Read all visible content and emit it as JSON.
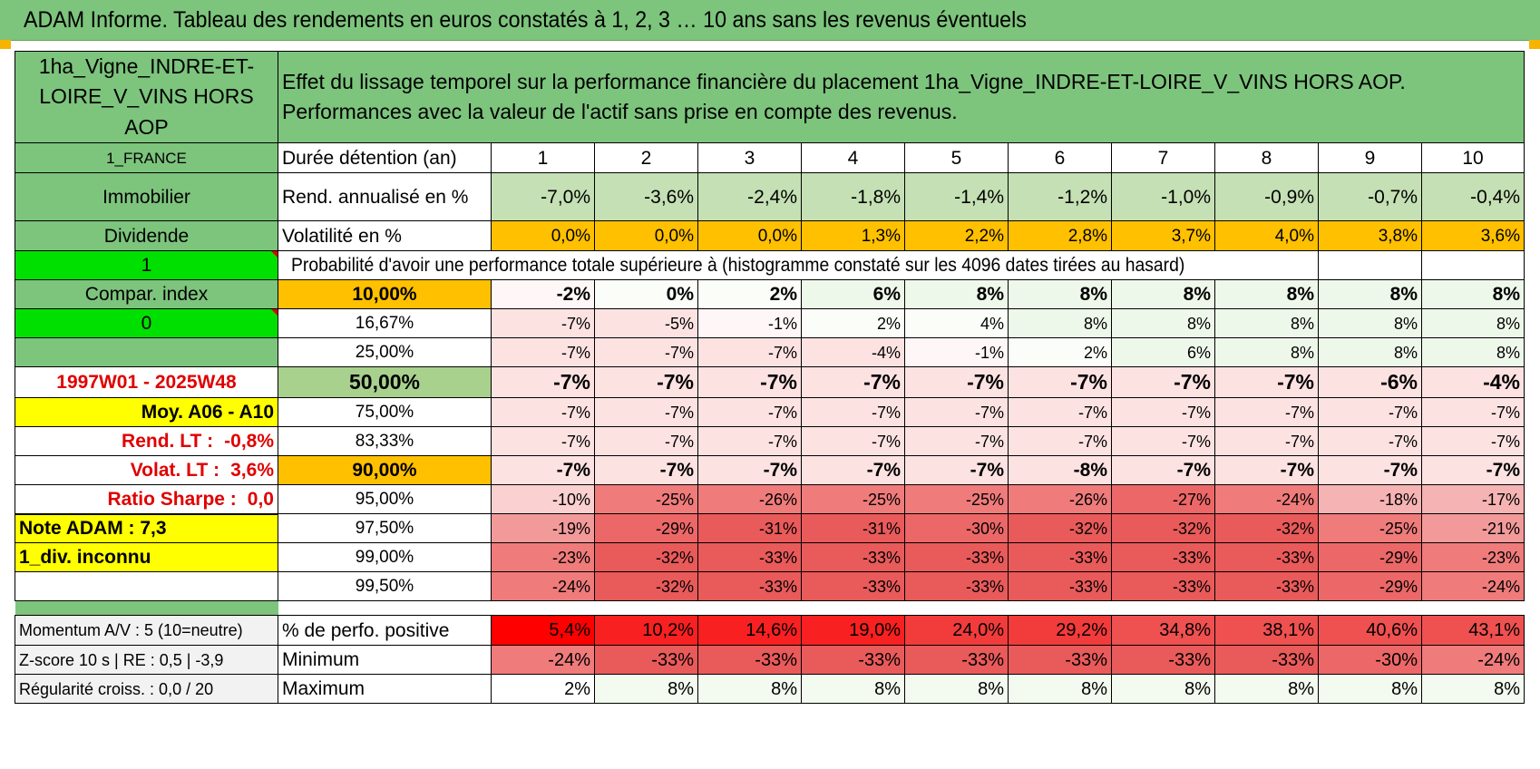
{
  "title": "ADAM Informe. Tableau des rendements en euros constatés à 1, 2, 3 … 10 ans sans les revenus éventuels",
  "header": {
    "asset_name": "1ha_Vigne_INDRE-ET-LOIRE_V_VINS HORS AOP",
    "description_line1": "Effet du lissage temporel sur la performance financière du placement 1ha_Vigne_INDRE-ET-LOIRE_V_VINS HORS AOP.",
    "description_line2": "Performances avec la valeur de l'actif sans prise en compte des revenus."
  },
  "side": {
    "country": "1_FRANCE",
    "category": "Immobilier",
    "income_type": "Dividende",
    "flag1": "1",
    "compar_label": "Compar. index",
    "flag2": "0",
    "blank": "",
    "period": "1997W01 - 2025W48",
    "avg_range": "Moy. A06 - A10",
    "rend_lt_label": "Rend. LT :",
    "rend_lt_value": "-0,8%",
    "volat_lt_label": "Volat. LT :",
    "volat_lt_value": "3,6%",
    "sharpe_label": "Ratio Sharpe :",
    "sharpe_value": "0,0",
    "note_adam": "Note ADAM : 7,3",
    "div_info": "1_div. inconnu",
    "momentum": "Momentum A/V : 5 (10=neutre)",
    "zscore": "Z-score 10 s | RE : 0,5 | -3,9",
    "regularite": "Régularité croiss. : 0,0 / 20"
  },
  "labels": {
    "duration": "Durée détention (an)",
    "rend": "Rend. annualisé en %",
    "vol": "Volatilité en %",
    "prob_header": "Probabilité d'avoir une performance totale supérieure à (histogramme constaté sur les 4096 dates tirées au hasard)",
    "pct_positive": "% de perfo. positive",
    "minimum": "Minimum",
    "maximum": "Maximum"
  },
  "years": [
    "1",
    "2",
    "3",
    "4",
    "5",
    "6",
    "7",
    "8",
    "9",
    "10"
  ],
  "rend_annualise": [
    "-7,0%",
    "-3,6%",
    "-2,4%",
    "-1,8%",
    "-1,4%",
    "-1,2%",
    "-1,0%",
    "-0,9%",
    "-0,7%",
    "-0,4%"
  ],
  "volatilite": [
    "0,0%",
    "0,0%",
    "0,0%",
    "1,3%",
    "2,2%",
    "2,8%",
    "3,7%",
    "4,0%",
    "3,8%",
    "3,6%"
  ],
  "probabilities": [
    {
      "p": "10,00%",
      "values": [
        "-2%",
        "0%",
        "2%",
        "6%",
        "8%",
        "8%",
        "8%",
        "8%",
        "8%",
        "8%"
      ]
    },
    {
      "p": "16,67%",
      "values": [
        "-7%",
        "-5%",
        "-1%",
        "2%",
        "4%",
        "8%",
        "8%",
        "8%",
        "8%",
        "8%"
      ]
    },
    {
      "p": "25,00%",
      "values": [
        "-7%",
        "-7%",
        "-7%",
        "-4%",
        "-1%",
        "2%",
        "6%",
        "8%",
        "8%",
        "8%"
      ]
    },
    {
      "p": "50,00%",
      "values": [
        "-7%",
        "-7%",
        "-7%",
        "-7%",
        "-7%",
        "-7%",
        "-7%",
        "-7%",
        "-6%",
        "-4%"
      ]
    },
    {
      "p": "75,00%",
      "values": [
        "-7%",
        "-7%",
        "-7%",
        "-7%",
        "-7%",
        "-7%",
        "-7%",
        "-7%",
        "-7%",
        "-7%"
      ]
    },
    {
      "p": "83,33%",
      "values": [
        "-7%",
        "-7%",
        "-7%",
        "-7%",
        "-7%",
        "-7%",
        "-7%",
        "-7%",
        "-7%",
        "-7%"
      ]
    },
    {
      "p": "90,00%",
      "values": [
        "-7%",
        "-7%",
        "-7%",
        "-7%",
        "-7%",
        "-8%",
        "-7%",
        "-7%",
        "-7%",
        "-7%"
      ]
    },
    {
      "p": "95,00%",
      "values": [
        "-10%",
        "-25%",
        "-26%",
        "-25%",
        "-25%",
        "-26%",
        "-27%",
        "-24%",
        "-18%",
        "-17%"
      ]
    },
    {
      "p": "97,50%",
      "values": [
        "-19%",
        "-29%",
        "-31%",
        "-31%",
        "-30%",
        "-32%",
        "-32%",
        "-32%",
        "-25%",
        "-21%"
      ]
    },
    {
      "p": "99,00%",
      "values": [
        "-23%",
        "-32%",
        "-33%",
        "-33%",
        "-33%",
        "-33%",
        "-33%",
        "-33%",
        "-29%",
        "-23%"
      ]
    },
    {
      "p": "99,50%",
      "values": [
        "-24%",
        "-32%",
        "-33%",
        "-33%",
        "-33%",
        "-33%",
        "-33%",
        "-33%",
        "-29%",
        "-24%"
      ]
    }
  ],
  "pct_positive": [
    "5,4%",
    "10,2%",
    "14,6%",
    "19,0%",
    "24,0%",
    "29,2%",
    "34,8%",
    "38,1%",
    "40,6%",
    "43,1%"
  ],
  "minimum": [
    "-24%",
    "-33%",
    "-33%",
    "-33%",
    "-33%",
    "-33%",
    "-33%",
    "-33%",
    "-30%",
    "-24%"
  ],
  "maximum": [
    "2%",
    "8%",
    "8%",
    "8%",
    "8%",
    "8%",
    "8%",
    "8%",
    "8%",
    "8%"
  ]
}
